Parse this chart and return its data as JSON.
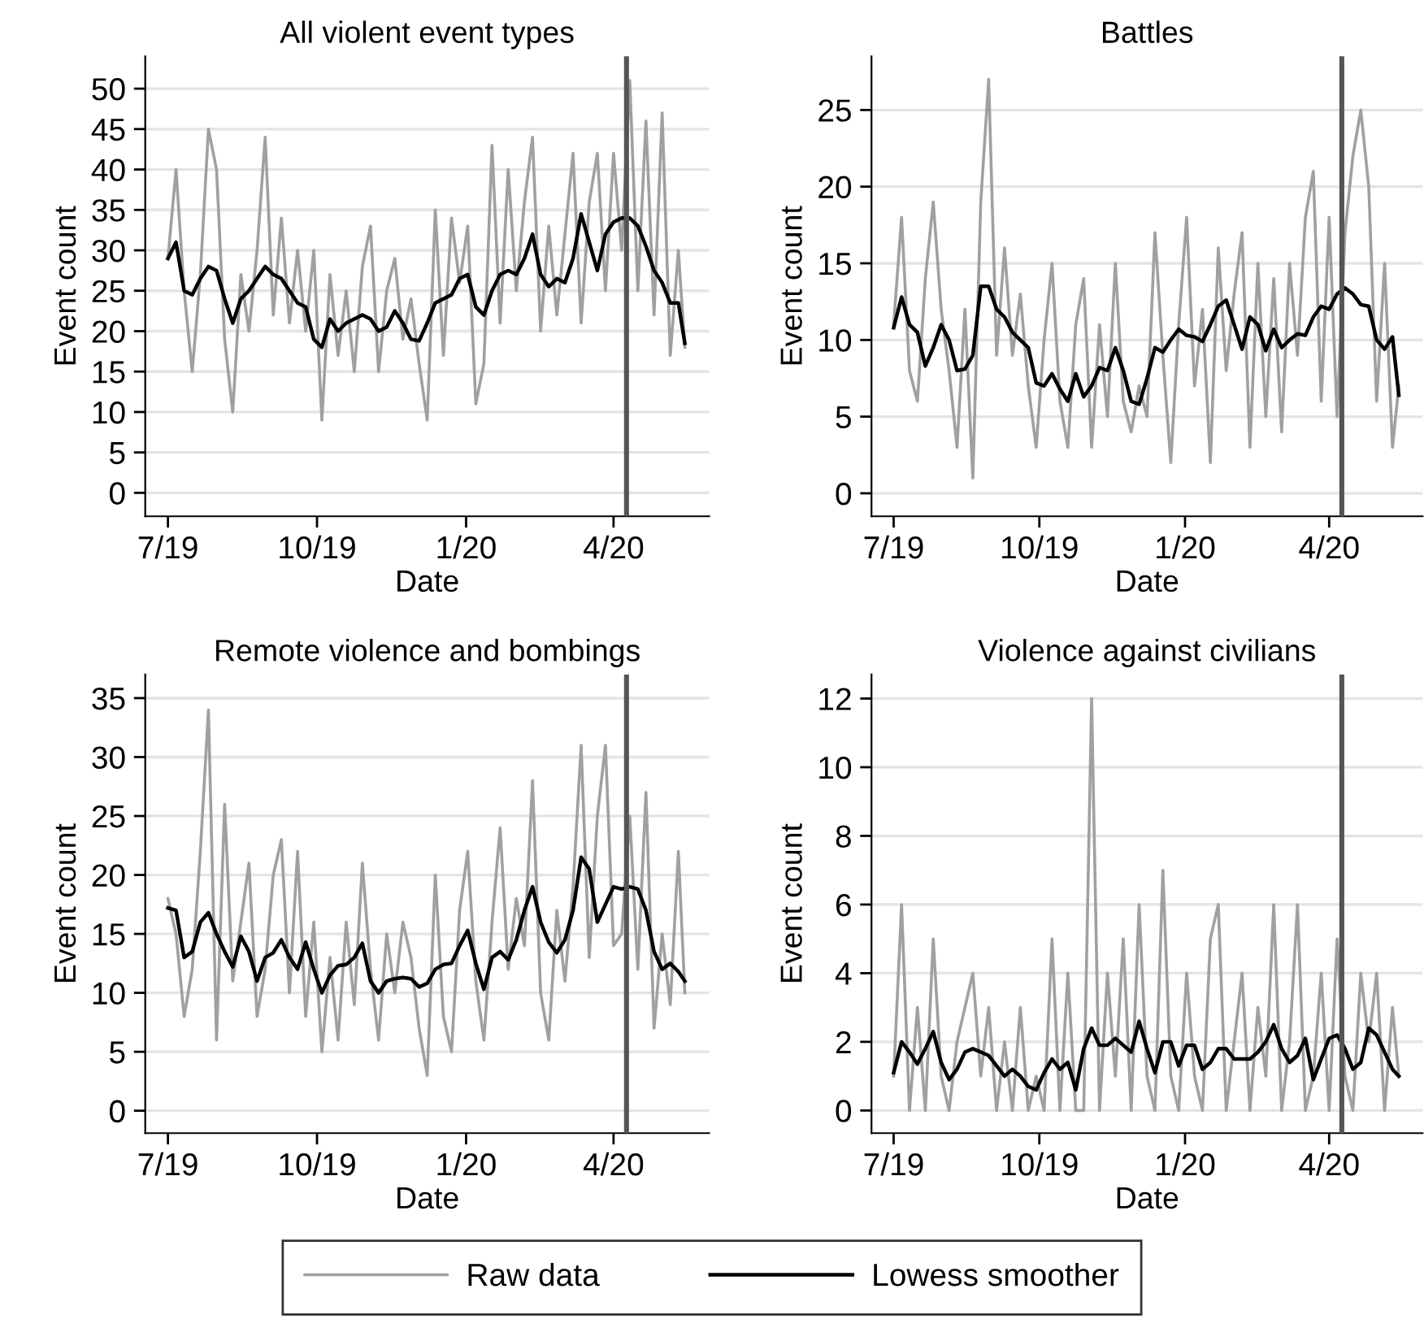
{
  "chart_data": [
    {
      "type": "line",
      "title": "All violent event types",
      "xlabel": "Date",
      "ylabel": "Event count",
      "xlim": [
        "2019-06-17",
        "2020-05-30"
      ],
      "ylim": [
        -2.9,
        54
      ],
      "yticks": [
        0,
        5,
        10,
        15,
        20,
        25,
        30,
        35,
        40,
        45,
        50
      ],
      "xticks": [
        {
          "value": "2019-07-01",
          "label": "7/19"
        },
        {
          "value": "2019-10-01",
          "label": "10/19"
        },
        {
          "value": "2020-01-01",
          "label": "1/20"
        },
        {
          "value": "2020-04-01",
          "label": "4/20"
        }
      ],
      "grid": "y",
      "ref_lines": [
        {
          "axis": "x",
          "value": "2020-04-09",
          "color": "#555555"
        }
      ],
      "x": [
        "2019-07-01",
        "2019-07-06",
        "2019-07-11",
        "2019-07-16",
        "2019-07-21",
        "2019-07-26",
        "2019-07-31",
        "2019-08-05",
        "2019-08-10",
        "2019-08-15",
        "2019-08-20",
        "2019-08-25",
        "2019-08-30",
        "2019-09-04",
        "2019-09-09",
        "2019-09-14",
        "2019-09-19",
        "2019-09-24",
        "2019-09-29",
        "2019-10-04",
        "2019-10-09",
        "2019-10-14",
        "2019-10-19",
        "2019-10-24",
        "2019-10-29",
        "2019-11-03",
        "2019-11-08",
        "2019-11-13",
        "2019-11-18",
        "2019-11-23",
        "2019-11-28",
        "2019-12-03",
        "2019-12-08",
        "2019-12-13",
        "2019-12-18",
        "2019-12-23",
        "2019-12-28",
        "2020-01-02",
        "2020-01-07",
        "2020-01-12",
        "2020-01-17",
        "2020-01-22",
        "2020-01-27",
        "2020-02-01",
        "2020-02-06",
        "2020-02-11",
        "2020-02-16",
        "2020-02-21",
        "2020-02-26",
        "2020-03-02",
        "2020-03-07",
        "2020-03-12",
        "2020-03-17",
        "2020-03-22",
        "2020-03-27",
        "2020-04-01",
        "2020-04-06",
        "2020-04-11",
        "2020-04-16",
        "2020-04-21",
        "2020-04-26",
        "2020-05-01",
        "2020-05-06",
        "2020-05-11",
        "2020-05-15"
      ],
      "series": [
        {
          "color": "#a0a0a0",
          "values": [
            29,
            40,
            25,
            15,
            27,
            45,
            40,
            19,
            10,
            27,
            20,
            30,
            44,
            22,
            34,
            21,
            30,
            20,
            30,
            9,
            27,
            17,
            25,
            15,
            28,
            33,
            15,
            25,
            29,
            19,
            24,
            16,
            9,
            35,
            17,
            34,
            26,
            33,
            11,
            16,
            43,
            21,
            40,
            25,
            36,
            44,
            20,
            33,
            22,
            32,
            42,
            21,
            36,
            42,
            25,
            42,
            30,
            51,
            25,
            46,
            22,
            47,
            17,
            30,
            18
          ]
        },
        {
          "color": "#000000",
          "values": [
            29,
            31,
            25,
            24.5,
            26.5,
            28,
            27.5,
            24,
            21,
            24,
            25,
            26.5,
            28,
            27,
            26.5,
            25,
            23.5,
            23,
            19,
            18,
            21.5,
            20,
            21,
            21.5,
            22,
            21.5,
            20,
            20.5,
            22.5,
            21,
            19,
            18.8,
            21,
            23.5,
            24,
            24.5,
            26.5,
            27,
            23,
            22,
            25,
            27,
            27.5,
            27,
            29,
            32,
            27,
            25.5,
            26.5,
            26,
            29,
            34.5,
            31,
            27.5,
            32,
            33.5,
            34,
            34,
            33,
            30.5,
            27.5,
            26,
            23.5,
            23.5,
            18.5
          ]
        }
      ]
    },
    {
      "type": "line",
      "title": "Battles",
      "xlabel": "Date",
      "ylabel": "Event count",
      "xlim": [
        "2019-06-17",
        "2020-05-30"
      ],
      "ylim": [
        -1.5,
        28.5
      ],
      "yticks": [
        0,
        5,
        10,
        15,
        20,
        25
      ],
      "xticks": [
        {
          "value": "2019-07-01",
          "label": "7/19"
        },
        {
          "value": "2019-10-01",
          "label": "10/19"
        },
        {
          "value": "2020-01-01",
          "label": "1/20"
        },
        {
          "value": "2020-04-01",
          "label": "4/20"
        }
      ],
      "grid": "y",
      "ref_lines": [
        {
          "axis": "x",
          "value": "2020-04-09",
          "color": "#555555"
        }
      ],
      "x": [
        "2019-07-01",
        "2019-07-06",
        "2019-07-11",
        "2019-07-16",
        "2019-07-21",
        "2019-07-26",
        "2019-07-31",
        "2019-08-05",
        "2019-08-10",
        "2019-08-15",
        "2019-08-20",
        "2019-08-25",
        "2019-08-30",
        "2019-09-04",
        "2019-09-09",
        "2019-09-14",
        "2019-09-19",
        "2019-09-24",
        "2019-09-29",
        "2019-10-04",
        "2019-10-09",
        "2019-10-14",
        "2019-10-19",
        "2019-10-24",
        "2019-10-29",
        "2019-11-03",
        "2019-11-08",
        "2019-11-13",
        "2019-11-18",
        "2019-11-23",
        "2019-11-28",
        "2019-12-03",
        "2019-12-08",
        "2019-12-13",
        "2019-12-18",
        "2019-12-23",
        "2019-12-28",
        "2020-01-02",
        "2020-01-07",
        "2020-01-12",
        "2020-01-17",
        "2020-01-22",
        "2020-01-27",
        "2020-02-01",
        "2020-02-06",
        "2020-02-11",
        "2020-02-16",
        "2020-02-21",
        "2020-02-26",
        "2020-03-02",
        "2020-03-07",
        "2020-03-12",
        "2020-03-17",
        "2020-03-22",
        "2020-03-27",
        "2020-04-01",
        "2020-04-06",
        "2020-04-11",
        "2020-04-16",
        "2020-04-21",
        "2020-04-26",
        "2020-05-01",
        "2020-05-06",
        "2020-05-11",
        "2020-05-15"
      ],
      "series": [
        {
          "color": "#a0a0a0",
          "values": [
            11,
            18,
            8,
            6,
            14,
            19,
            12,
            8,
            3,
            12,
            1,
            19,
            27,
            9,
            16,
            9,
            13,
            7,
            3,
            10,
            15,
            6,
            3,
            11,
            14,
            3,
            11,
            5,
            15,
            6,
            4,
            7,
            5,
            17,
            9,
            2,
            11,
            18,
            7,
            12,
            2,
            16,
            8,
            13,
            17,
            3,
            15,
            5,
            14,
            4,
            15,
            9,
            18,
            21,
            6,
            18,
            5,
            17,
            22,
            25,
            20,
            6,
            15,
            3,
            7
          ]
        },
        {
          "color": "#000000",
          "values": [
            10.8,
            12.8,
            11,
            10.5,
            8.3,
            9.5,
            11,
            10,
            8,
            8.1,
            9,
            13.5,
            13.5,
            12,
            11.5,
            10.5,
            10,
            9.5,
            7.2,
            7,
            7.8,
            6.8,
            6,
            7.8,
            6.3,
            7,
            8.2,
            8,
            9.5,
            8,
            6,
            5.8,
            7.5,
            9.5,
            9.2,
            10,
            10.7,
            10.3,
            10.2,
            9.9,
            11,
            12.2,
            12.6,
            11,
            9.4,
            11.5,
            11,
            9.3,
            10.7,
            9.5,
            10,
            10.4,
            10.3,
            11.5,
            12.2,
            12,
            13,
            13.4,
            13,
            12.3,
            12.2,
            10,
            9.4,
            10.2,
            6.4
          ]
        }
      ]
    },
    {
      "type": "line",
      "title": "Remote violence and bombings",
      "xlabel": "Date",
      "ylabel": "Event count",
      "xlim": [
        "2019-06-17",
        "2020-05-30"
      ],
      "ylim": [
        -1.9,
        37
      ],
      "yticks": [
        0,
        5,
        10,
        15,
        20,
        25,
        30,
        35
      ],
      "xticks": [
        {
          "value": "2019-07-01",
          "label": "7/19"
        },
        {
          "value": "2019-10-01",
          "label": "10/19"
        },
        {
          "value": "2020-01-01",
          "label": "1/20"
        },
        {
          "value": "2020-04-01",
          "label": "4/20"
        }
      ],
      "grid": "y",
      "ref_lines": [
        {
          "axis": "x",
          "value": "2020-04-09",
          "color": "#555555"
        }
      ],
      "x": [
        "2019-07-01",
        "2019-07-06",
        "2019-07-11",
        "2019-07-16",
        "2019-07-21",
        "2019-07-26",
        "2019-07-31",
        "2019-08-05",
        "2019-08-10",
        "2019-08-15",
        "2019-08-20",
        "2019-08-25",
        "2019-08-30",
        "2019-09-04",
        "2019-09-09",
        "2019-09-14",
        "2019-09-19",
        "2019-09-24",
        "2019-09-29",
        "2019-10-04",
        "2019-10-09",
        "2019-10-14",
        "2019-10-19",
        "2019-10-24",
        "2019-10-29",
        "2019-11-03",
        "2019-11-08",
        "2019-11-13",
        "2019-11-18",
        "2019-11-23",
        "2019-11-28",
        "2019-12-03",
        "2019-12-08",
        "2019-12-13",
        "2019-12-18",
        "2019-12-23",
        "2019-12-28",
        "2020-01-02",
        "2020-01-07",
        "2020-01-12",
        "2020-01-17",
        "2020-01-22",
        "2020-01-27",
        "2020-02-01",
        "2020-02-06",
        "2020-02-11",
        "2020-02-16",
        "2020-02-21",
        "2020-02-26",
        "2020-03-02",
        "2020-03-07",
        "2020-03-12",
        "2020-03-17",
        "2020-03-22",
        "2020-03-27",
        "2020-04-01",
        "2020-04-06",
        "2020-04-11",
        "2020-04-16",
        "2020-04-21",
        "2020-04-26",
        "2020-05-01",
        "2020-05-06",
        "2020-05-11",
        "2020-05-15"
      ],
      "series": [
        {
          "color": "#a0a0a0",
          "values": [
            18,
            15,
            8,
            12,
            22,
            34,
            6,
            26,
            11,
            16,
            21,
            8,
            12,
            20,
            23,
            10,
            22,
            8,
            16,
            5,
            13,
            6,
            16,
            9,
            21,
            12,
            6,
            15,
            10,
            16,
            13,
            7,
            3,
            20,
            8,
            5,
            17,
            22,
            11,
            6,
            16,
            24,
            12,
            18,
            14,
            28,
            10,
            6,
            17,
            11,
            19,
            31,
            13,
            25,
            31,
            14,
            15,
            25,
            12,
            27,
            7,
            15,
            9,
            22,
            10
          ]
        },
        {
          "color": "#000000",
          "values": [
            17.2,
            17,
            13,
            13.5,
            16,
            16.8,
            15,
            13.5,
            12.2,
            14.8,
            13.5,
            11,
            13,
            13.4,
            14.5,
            13,
            12,
            14.3,
            12,
            10,
            11.5,
            12.3,
            12.4,
            13,
            14.2,
            11,
            10,
            11,
            11.2,
            11.3,
            11.2,
            10.5,
            10.8,
            12,
            12.4,
            12.5,
            14,
            15.3,
            12.5,
            10.3,
            13,
            13.5,
            12.8,
            14.5,
            17,
            19,
            16,
            14.3,
            13.4,
            14.5,
            17,
            21.5,
            20.5,
            16,
            17.5,
            19,
            18.8,
            19,
            18.8,
            17,
            13.5,
            12,
            12.5,
            11.8,
            11
          ]
        }
      ]
    },
    {
      "type": "line",
      "title": "Violence against civilians",
      "xlabel": "Date",
      "ylabel": "Event count",
      "xlim": [
        "2019-06-17",
        "2020-05-30"
      ],
      "ylim": [
        -0.66,
        12.7
      ],
      "yticks": [
        0,
        2,
        4,
        6,
        8,
        10,
        12
      ],
      "xticks": [
        {
          "value": "2019-07-01",
          "label": "7/19"
        },
        {
          "value": "2019-10-01",
          "label": "10/19"
        },
        {
          "value": "2020-01-01",
          "label": "1/20"
        },
        {
          "value": "2020-04-01",
          "label": "4/20"
        }
      ],
      "grid": "y",
      "legend": "bottom",
      "ref_lines": [
        {
          "axis": "x",
          "value": "2020-04-09",
          "color": "#555555"
        }
      ],
      "x": [
        "2019-07-01",
        "2019-07-06",
        "2019-07-11",
        "2019-07-16",
        "2019-07-21",
        "2019-07-26",
        "2019-07-31",
        "2019-08-05",
        "2019-08-10",
        "2019-08-15",
        "2019-08-20",
        "2019-08-25",
        "2019-08-30",
        "2019-09-04",
        "2019-09-09",
        "2019-09-14",
        "2019-09-19",
        "2019-09-24",
        "2019-09-29",
        "2019-10-04",
        "2019-10-09",
        "2019-10-14",
        "2019-10-19",
        "2019-10-24",
        "2019-10-29",
        "2019-11-03",
        "2019-11-08",
        "2019-11-13",
        "2019-11-18",
        "2019-11-23",
        "2019-11-28",
        "2019-12-03",
        "2019-12-08",
        "2019-12-13",
        "2019-12-18",
        "2019-12-23",
        "2019-12-28",
        "2020-01-02",
        "2020-01-07",
        "2020-01-12",
        "2020-01-17",
        "2020-01-22",
        "2020-01-27",
        "2020-02-01",
        "2020-02-06",
        "2020-02-11",
        "2020-02-16",
        "2020-02-21",
        "2020-02-26",
        "2020-03-02",
        "2020-03-07",
        "2020-03-12",
        "2020-03-17",
        "2020-03-22",
        "2020-03-27",
        "2020-04-01",
        "2020-04-06",
        "2020-04-11",
        "2020-04-16",
        "2020-04-21",
        "2020-04-26",
        "2020-05-01",
        "2020-05-06",
        "2020-05-11",
        "2020-05-15"
      ],
      "series": [
        {
          "name": "Raw data",
          "color": "#a0a0a0",
          "values": [
            1,
            6,
            0,
            3,
            0,
            5,
            1,
            0,
            2,
            3,
            4,
            1,
            3,
            0,
            2,
            0,
            3,
            0,
            1,
            0,
            5,
            0,
            4,
            0,
            0,
            12,
            0,
            4,
            1,
            5,
            0,
            6,
            1,
            0,
            7,
            1,
            0,
            4,
            1,
            0,
            5,
            6,
            0,
            2,
            4,
            0,
            3,
            1,
            6,
            0,
            2,
            6,
            0,
            1,
            4,
            0,
            5,
            1,
            0,
            4,
            2,
            4,
            0,
            3,
            1
          ]
        },
        {
          "name": "Lowess smoother",
          "color": "#000000",
          "values": [
            1.1,
            2,
            1.7,
            1.35,
            1.8,
            2.3,
            1.4,
            0.9,
            1.2,
            1.7,
            1.8,
            1.7,
            1.6,
            1.3,
            1,
            1.2,
            1,
            0.7,
            0.6,
            1.1,
            1.5,
            1.2,
            1.4,
            0.6,
            1.8,
            2.4,
            1.9,
            1.9,
            2.1,
            1.9,
            1.7,
            2.6,
            1.8,
            1.1,
            2,
            2,
            1.3,
            1.9,
            1.9,
            1.2,
            1.4,
            1.8,
            1.8,
            1.5,
            1.5,
            1.5,
            1.7,
            2,
            2.5,
            1.8,
            1.4,
            1.6,
            2.1,
            0.9,
            1.5,
            2.1,
            2.2,
            1.8,
            1.2,
            1.4,
            2.4,
            2.2,
            1.7,
            1.2,
            1
          ]
        }
      ]
    }
  ]
}
